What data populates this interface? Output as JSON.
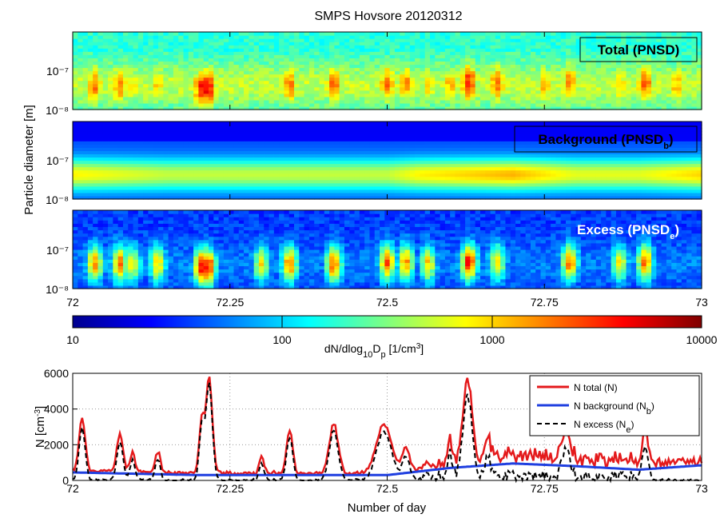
{
  "figure": {
    "title": "SMPS Hovsore 20120312",
    "shared_ylabel": "Particle diameter [m]",
    "shared_xlabel": "Number of day"
  },
  "chart_data": [
    {
      "type": "heatmap",
      "panel_label": "Total (PNSD)",
      "x_ticks": [
        "72",
        "72.25",
        "72.5",
        "72.75",
        "73"
      ],
      "y_ticks": [
        "10⁻⁸",
        "10⁻⁷"
      ],
      "xlim": [
        72,
        73
      ],
      "ylim": [
        1e-08,
        5e-07
      ],
      "y_scale": "log",
      "bursts": [
        {
          "x": 72.035,
          "d": 3.5e-08,
          "level": 3.3
        },
        {
          "x": 72.075,
          "d": 3.5e-08,
          "level": 3.3
        },
        {
          "x": 72.095,
          "d": 3.5e-08,
          "level": 2.9
        },
        {
          "x": 72.135,
          "d": 3.5e-08,
          "level": 3.0
        },
        {
          "x": 72.205,
          "d": 3e-08,
          "level": 3.6
        },
        {
          "x": 72.215,
          "d": 3e-08,
          "level": 3.7
        },
        {
          "x": 72.3,
          "d": 3.5e-08,
          "level": 2.8
        },
        {
          "x": 72.345,
          "d": 3.5e-08,
          "level": 3.3
        },
        {
          "x": 72.415,
          "d": 3.5e-08,
          "level": 3.4
        },
        {
          "x": 72.5,
          "d": 3.8e-08,
          "level": 3.3
        },
        {
          "x": 72.53,
          "d": 3.8e-08,
          "level": 3.2
        },
        {
          "x": 72.565,
          "d": 3.5e-08,
          "level": 3.0
        },
        {
          "x": 72.6,
          "d": 3.5e-08,
          "level": 3.1
        },
        {
          "x": 72.63,
          "d": 3.8e-08,
          "level": 3.6
        },
        {
          "x": 72.675,
          "d": 3.8e-08,
          "level": 3.3
        },
        {
          "x": 72.75,
          "d": 3.5e-08,
          "level": 3.1
        },
        {
          "x": 72.79,
          "d": 3.8e-08,
          "level": 3.3
        },
        {
          "x": 72.87,
          "d": 3.5e-08,
          "level": 3.0
        },
        {
          "x": 72.91,
          "d": 3.8e-08,
          "level": 3.4
        },
        {
          "x": 72.96,
          "d": 3.5e-08,
          "level": 3.1
        }
      ]
    },
    {
      "type": "heatmap",
      "panel_label": "Background (PNSDb)",
      "x_ticks": [
        "72",
        "72.25",
        "72.5",
        "72.75",
        "73"
      ],
      "y_ticks": [
        "10⁻⁸",
        "10⁻⁷"
      ],
      "xlim": [
        72,
        73
      ],
      "ylim": [
        1e-08,
        5e-07
      ],
      "y_scale": "log",
      "profile_levels": [
        {
          "x": 72.0,
          "level": 2.9
        },
        {
          "x": 72.15,
          "level": 2.7
        },
        {
          "x": 72.5,
          "level": 2.7
        },
        {
          "x": 72.55,
          "level": 2.9
        },
        {
          "x": 72.7,
          "level": 3.1
        },
        {
          "x": 72.8,
          "level": 2.8
        },
        {
          "x": 72.9,
          "level": 2.8
        },
        {
          "x": 73.0,
          "level": 3.0
        }
      ]
    },
    {
      "type": "heatmap",
      "panel_label": "Excess (PNSDe)",
      "x_ticks": [
        "72",
        "72.25",
        "72.5",
        "72.75",
        "73"
      ],
      "y_ticks": [
        "10⁻⁸",
        "10⁻⁷"
      ],
      "xlim": [
        72,
        73
      ],
      "ylim": [
        1e-08,
        5e-07
      ],
      "y_scale": "log",
      "bursts": [
        {
          "x": 72.035,
          "d": 3.5e-08,
          "level": 3.2
        },
        {
          "x": 72.075,
          "d": 3.5e-08,
          "level": 3.3
        },
        {
          "x": 72.095,
          "d": 3.5e-08,
          "level": 2.9
        },
        {
          "x": 72.135,
          "d": 3.5e-08,
          "level": 3.0
        },
        {
          "x": 72.205,
          "d": 3e-08,
          "level": 3.6
        },
        {
          "x": 72.215,
          "d": 3e-08,
          "level": 3.7
        },
        {
          "x": 72.3,
          "d": 3.5e-08,
          "level": 2.9
        },
        {
          "x": 72.345,
          "d": 3.5e-08,
          "level": 3.3
        },
        {
          "x": 72.415,
          "d": 3.5e-08,
          "level": 3.4
        },
        {
          "x": 72.5,
          "d": 3.8e-08,
          "level": 3.4
        },
        {
          "x": 72.53,
          "d": 3.8e-08,
          "level": 3.2
        },
        {
          "x": 72.565,
          "d": 3.5e-08,
          "level": 3.0
        },
        {
          "x": 72.63,
          "d": 3.8e-08,
          "level": 3.6
        },
        {
          "x": 72.675,
          "d": 3.8e-08,
          "level": 3.0
        },
        {
          "x": 72.79,
          "d": 3.8e-08,
          "level": 3.3
        },
        {
          "x": 72.87,
          "d": 3.5e-08,
          "level": 2.9
        },
        {
          "x": 72.91,
          "d": 3.8e-08,
          "level": 3.3
        }
      ]
    },
    {
      "type": "colorbar",
      "label": "dN/dlog10Dp [1/cm3]",
      "ticks": [
        "10",
        "100",
        "1000",
        "10000"
      ],
      "range": [
        10,
        10000
      ],
      "scale": "log",
      "colormap": "jet"
    },
    {
      "type": "line",
      "xlabel": "Number of day",
      "ylabel": "N [cm⁻³]",
      "xlim": [
        72,
        73
      ],
      "ylim": [
        0,
        6000
      ],
      "x_ticks": [
        "72",
        "72.25",
        "72.5",
        "72.75",
        "73"
      ],
      "y_ticks": [
        "0",
        "2000",
        "4000",
        "6000"
      ],
      "grid": true,
      "legend_position": "top-right",
      "peaks": [
        {
          "x": 72.015,
          "w": 0.005,
          "total": 2900
        },
        {
          "x": 72.075,
          "w": 0.005,
          "total": 2100
        },
        {
          "x": 72.095,
          "w": 0.004,
          "total": 1100
        },
        {
          "x": 72.135,
          "w": 0.004,
          "total": 1200
        },
        {
          "x": 72.205,
          "w": 0.004,
          "total": 3000
        },
        {
          "x": 72.217,
          "w": 0.005,
          "total": 5400
        },
        {
          "x": 72.3,
          "w": 0.004,
          "total": 900
        },
        {
          "x": 72.345,
          "w": 0.005,
          "total": 2400
        },
        {
          "x": 72.415,
          "w": 0.007,
          "total": 2800
        },
        {
          "x": 72.495,
          "w": 0.012,
          "total": 2700
        },
        {
          "x": 72.53,
          "w": 0.006,
          "total": 1300
        },
        {
          "x": 72.6,
          "w": 0.004,
          "total": 1300
        },
        {
          "x": 72.628,
          "w": 0.007,
          "total": 4600
        },
        {
          "x": 72.66,
          "w": 0.005,
          "total": 1000
        },
        {
          "x": 72.785,
          "w": 0.006,
          "total": 1800
        },
        {
          "x": 72.91,
          "w": 0.005,
          "total": 1900
        }
      ],
      "background": {
        "x": [
          72.0,
          72.2,
          72.5,
          72.6,
          72.7,
          72.8,
          72.9,
          73.0
        ],
        "y": [
          450,
          300,
          300,
          700,
          950,
          800,
          600,
          850
        ]
      },
      "series": [
        {
          "name": "N total (N)",
          "color": "#e41a1c",
          "style": "solid"
        },
        {
          "name": "N background (N",
          "suffix": "b",
          "close": ")",
          "color": "#1f3fe0",
          "style": "solid"
        },
        {
          "name": "N excess (N",
          "suffix": "e",
          "close": ")",
          "color": "#000000",
          "style": "dashed"
        }
      ]
    }
  ]
}
